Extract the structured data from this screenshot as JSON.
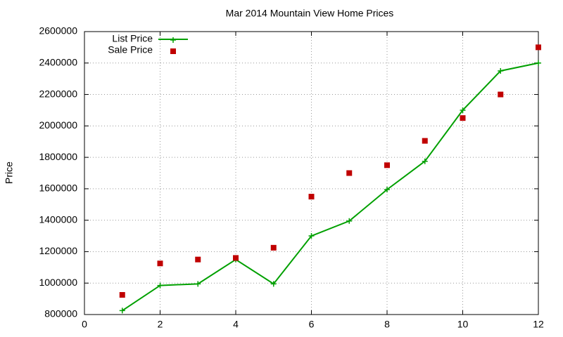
{
  "chart_data": {
    "type": "line",
    "title": "Mar 2014 Mountain View Home Prices",
    "y_label": "Price",
    "x": [
      1,
      2,
      3,
      4,
      5,
      6,
      7,
      8,
      9,
      10,
      11,
      12
    ],
    "series": [
      {
        "name": "List Price",
        "color": "#00a000",
        "line": true,
        "marker": "plus",
        "values": [
          825000,
          985000,
          995000,
          1150000,
          995000,
          1300000,
          1395000,
          1595000,
          1775000,
          2100000,
          2350000,
          2400000
        ]
      },
      {
        "name": "Sale Price",
        "color": "#c00000",
        "line": false,
        "marker": "square",
        "values": [
          925000,
          1125000,
          1150000,
          1160000,
          1225000,
          1550000,
          1700000,
          1750000,
          1905000,
          2050000,
          2200000,
          2500000
        ]
      }
    ],
    "xlim": [
      0,
      12
    ],
    "xticks": [
      0,
      2,
      4,
      6,
      8,
      10,
      12
    ],
    "ylim": [
      800000,
      2600000
    ],
    "yticks": [
      800000,
      1000000,
      1200000,
      1400000,
      1600000,
      1800000,
      2000000,
      2200000,
      2400000,
      2600000
    ],
    "grid": true,
    "legend": "top-left"
  }
}
